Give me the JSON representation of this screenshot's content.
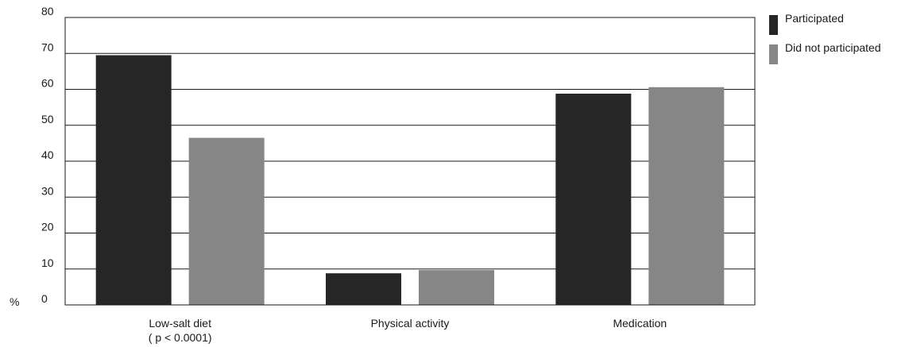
{
  "chart_data": {
    "type": "bar",
    "categories": [
      {
        "label": "Low-salt diet",
        "sublabel": "( p < 0.0001)"
      },
      {
        "label": "Physical activity",
        "sublabel": ""
      },
      {
        "label": "Medication",
        "sublabel": ""
      }
    ],
    "series": [
      {
        "name": "Participated",
        "color": "#262626",
        "values": [
          69.5,
          8.8,
          58.8
        ]
      },
      {
        "name": "Did not participated",
        "color": "#868686",
        "values": [
          46.5,
          9.7,
          60.6
        ]
      }
    ],
    "ylabel": "%",
    "ylim": [
      0,
      80
    ],
    "yticks": [
      "0",
      "10",
      "20",
      "30",
      "40",
      "50",
      "60",
      "70",
      "80"
    ],
    "grid": true,
    "legend_position": "right"
  }
}
